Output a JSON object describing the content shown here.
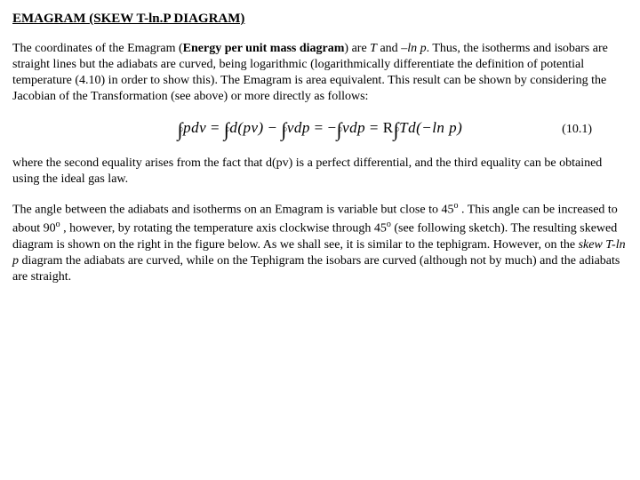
{
  "title": "EMAGRAM (SKEW T-ln.P DIAGRAM)",
  "para1_a": "The coordinates of the Emagram (",
  "para1_b": "Energy per unit mass diagram",
  "para1_c": ") are ",
  "para1_d": "T",
  "para1_e": " and ",
  "para1_f": "–ln p",
  "para1_g": ". Thus, the isotherms and isobars are straight lines but the adiabats are curved, being logarithmic (logarithmically differentiate the definition of potential temperature (4.10) in order to show this). The Emagram is area equivalent. This result can be shown by considering the Jacobian of the Transformation (see above) or more directly as follows:",
  "equation": {
    "number": "(10.1)",
    "terms": {
      "t1": "pdv",
      "eq1": " = ",
      "t2": "d(pv)",
      "minus1": " − ",
      "t3": "vdp",
      "eq2": " = −",
      "t4": "vdp",
      "eq3": " = R",
      "t5": "Td(−ln p)"
    }
  },
  "para2": "where the second equality arises from the fact that d(pv) is a perfect differential, and the third equality can be obtained using the ideal gas law.",
  "para3_a": "The angle between the adiabats and isotherms on an Emagram is variable but close to 45",
  "para3_b": " . This angle can be increased to about 90",
  "para3_c": " , however, by rotating the temperature axis clockwise through 45",
  "para3_d": " (see following sketch). The resulting skewed diagram is shown on the right in the figure below. As we shall see, it is similar to the tephigram. However, on the ",
  "para3_e": "skew T-ln p",
  "para3_f": " diagram the adiabats are curved, while on the Tephigram the isobars are curved (although not by much) and the adiabats are straight.",
  "deg": "o"
}
